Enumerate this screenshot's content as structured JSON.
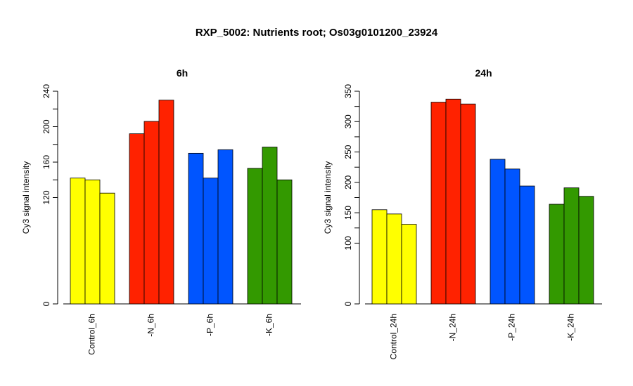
{
  "figure": {
    "title": "RXP_5002: Nutrients root; Os03g0101200_23924"
  },
  "chart_data": [
    {
      "type": "bar",
      "title": "6h",
      "ylabel": "Cy3 signal intensity",
      "xlabel": "",
      "ylim": [
        0,
        240
      ],
      "yticks": [
        0,
        120,
        160,
        200,
        240
      ],
      "grid": false,
      "legend": "none",
      "categories": [
        "Control_6h",
        "-N_6h",
        "-P_6h",
        "-K_6h"
      ],
      "colors": [
        "#ffff00",
        "#ff2200",
        "#0055ff",
        "#339900"
      ],
      "values": [
        [
          142,
          140,
          125
        ],
        [
          192,
          206,
          230
        ],
        [
          170,
          142,
          174
        ],
        [
          153,
          177,
          140
        ]
      ]
    },
    {
      "type": "bar",
      "title": "24h",
      "ylabel": "Cy3 signal intensity",
      "xlabel": "",
      "ylim": [
        0,
        350
      ],
      "yticks": [
        0,
        100,
        150,
        200,
        250,
        300,
        350
      ],
      "grid": false,
      "legend": "none",
      "categories": [
        "Control_24h",
        "-N_24h",
        "-P_24h",
        "-K_24h"
      ],
      "colors": [
        "#ffff00",
        "#ff2200",
        "#0055ff",
        "#339900"
      ],
      "values": [
        [
          155,
          148,
          131
        ],
        [
          332,
          337,
          329
        ],
        [
          238,
          222,
          194
        ],
        [
          164,
          191,
          177
        ]
      ]
    }
  ]
}
